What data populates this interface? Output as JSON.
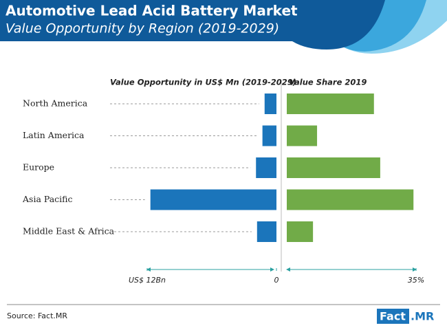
{
  "header": {
    "title": "Automotive Lead Acid Battery Market",
    "subtitle": "Value Opportunity by Region (2019-2029)"
  },
  "chart_data": [
    {
      "type": "bar",
      "orientation": "horizontal",
      "direction": "leftward",
      "title": "Value Opportunity in US$ Mn (2019-2029)",
      "categories": [
        "North America",
        "Latin America",
        "Europe",
        "Asia Pacific",
        "Middle East & Africa"
      ],
      "values": [
        1100,
        1300,
        1900,
        11700,
        1800
      ],
      "color": "#1b75bb",
      "xlim": [
        0,
        12000
      ],
      "xticks": [
        0,
        {
          "value": 12000,
          "label": "US$ 12Bn"
        }
      ]
    },
    {
      "type": "bar",
      "orientation": "horizontal",
      "direction": "rightward",
      "title": "Value Share 2019",
      "values": [
        23.6,
        8.2,
        25.3,
        34.3,
        7.1
      ],
      "color": "#71ab48",
      "xlim": [
        0,
        35
      ],
      "xticks": [
        {
          "value": 35,
          "label": "35%"
        }
      ]
    }
  ],
  "source": "Source: Fact.MR",
  "logo": {
    "left": "Fact",
    "right": ".MR"
  }
}
